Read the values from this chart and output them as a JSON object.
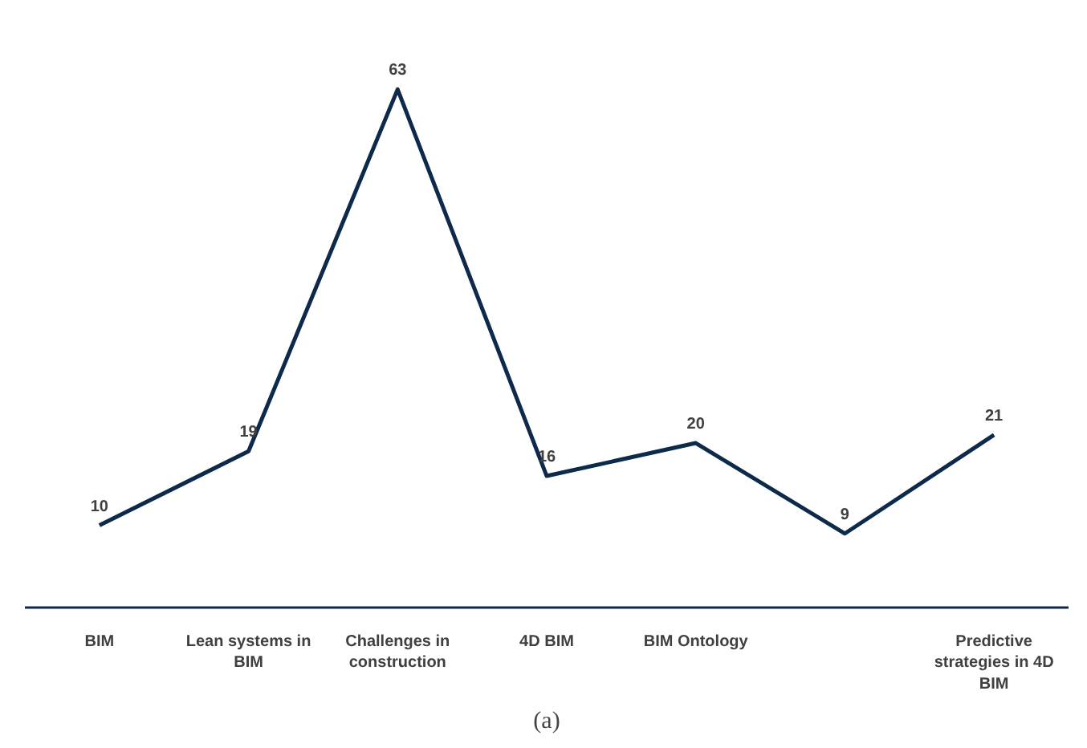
{
  "chart_data": {
    "type": "line",
    "categories": [
      "BIM",
      "Lean systems in BIM",
      "Challenges in construction",
      "4D BIM",
      "BIM Ontology",
      null,
      "Predictive strategies in 4D BIM"
    ],
    "series": [
      {
        "color": "#0e2a4a",
        "values": [
          10,
          19,
          63,
          16,
          20,
          9,
          21
        ]
      }
    ],
    "tick_labels": "x",
    "data_labels": true,
    "grid": false,
    "marker": "none",
    "line_style": "solid",
    "annotations": [
      "(a)"
    ]
  }
}
